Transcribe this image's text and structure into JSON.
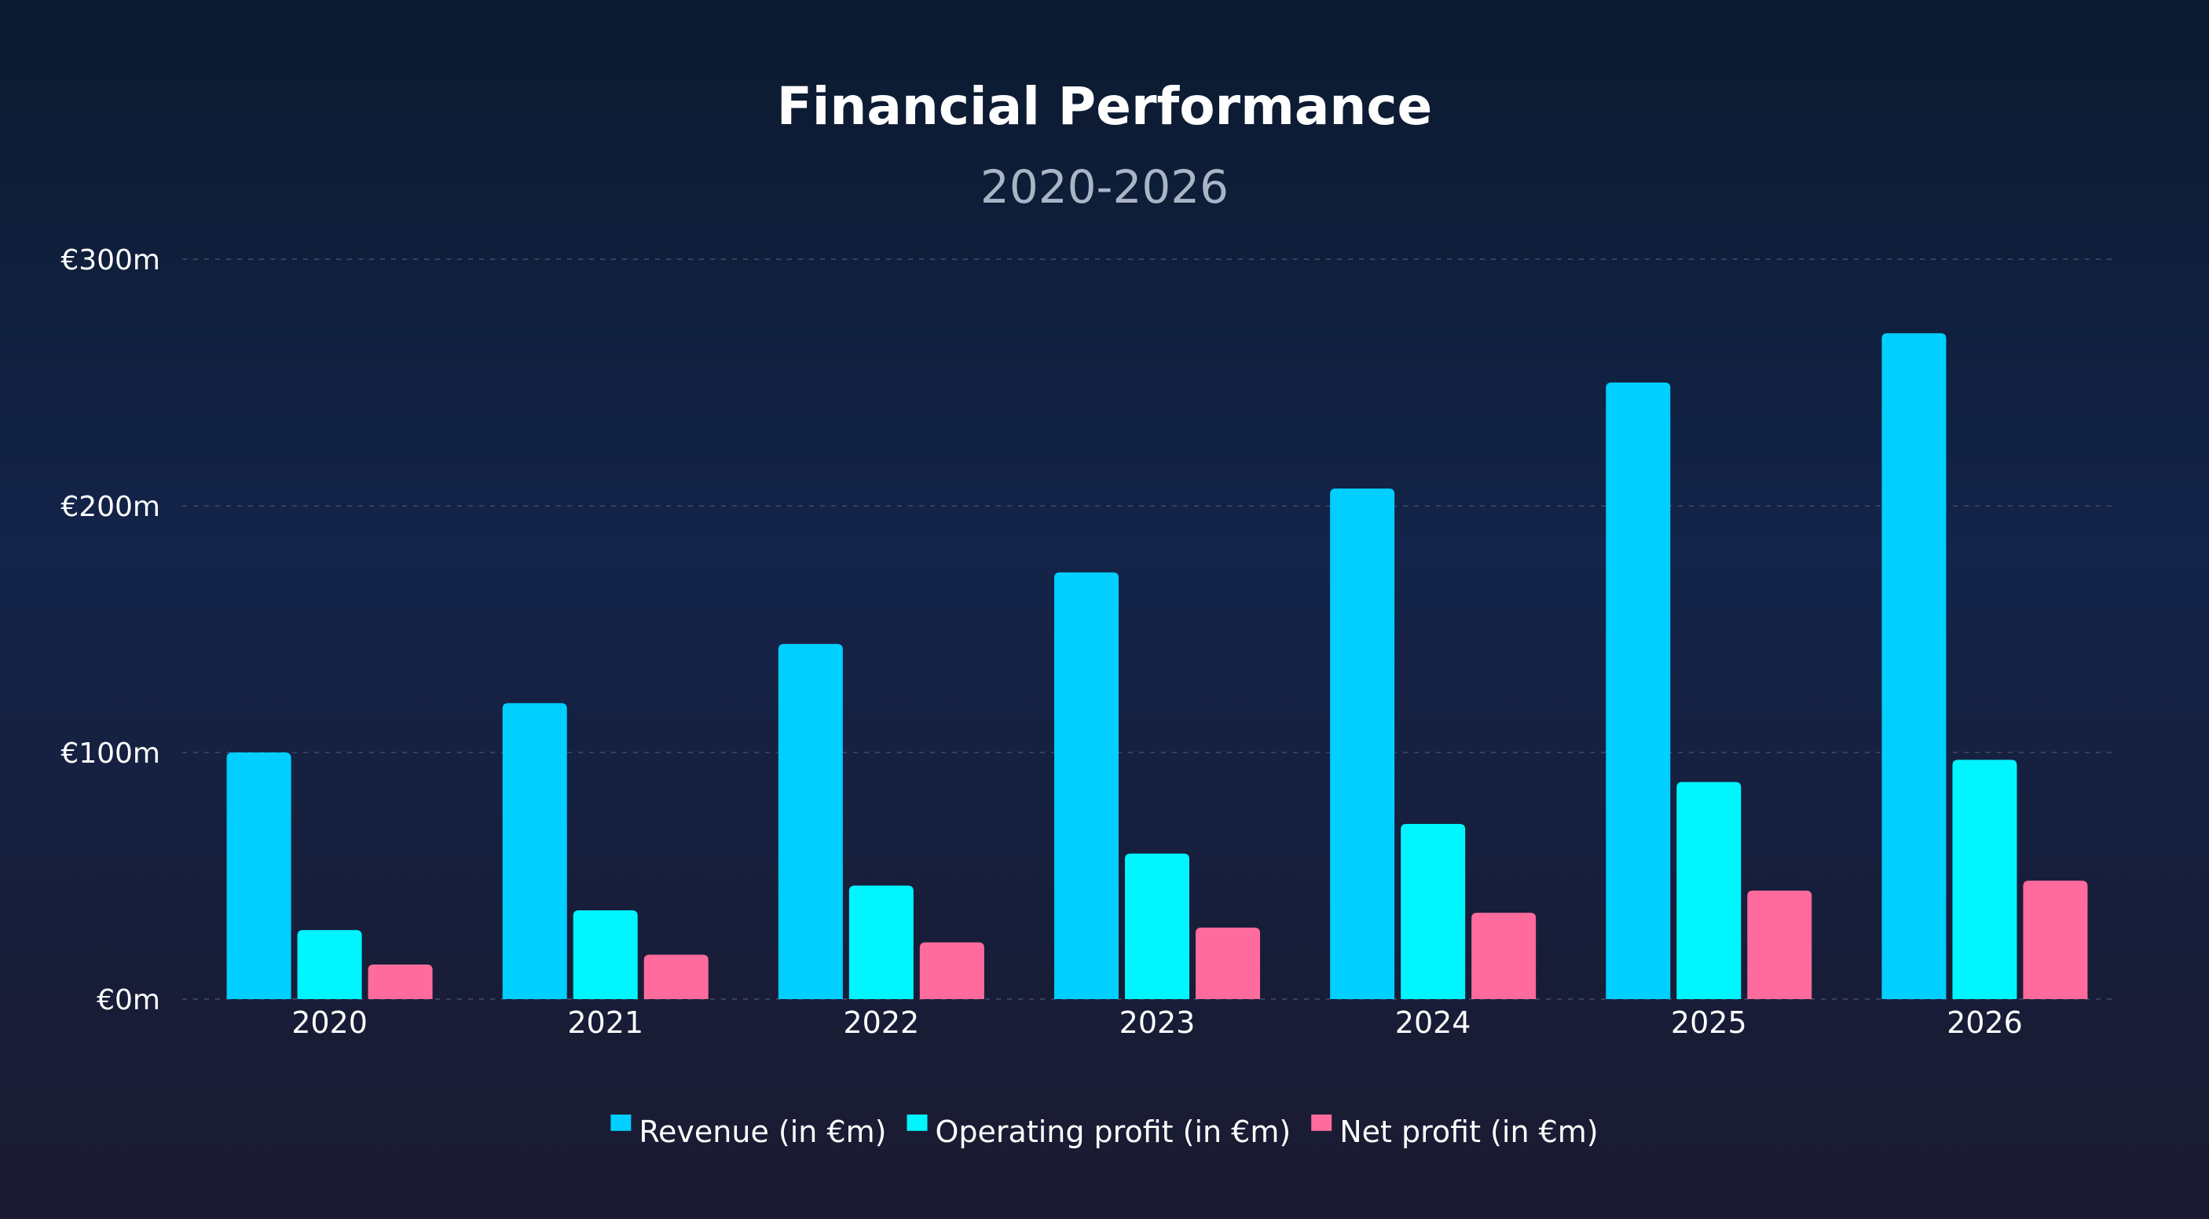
{
  "chart_data": {
    "type": "bar",
    "title": "Financial Performance",
    "subtitle": "2020-2026",
    "xlabel": "",
    "ylabel": "",
    "categories": [
      "2020",
      "2021",
      "2022",
      "2023",
      "2024",
      "2025",
      "2026"
    ],
    "series": [
      {
        "name": "Revenue (in €m)",
        "color": "#00cfff",
        "values": [
          100,
          120,
          144,
          173,
          207,
          250,
          270
        ]
      },
      {
        "name": "Operating profit (in €m)",
        "color": "#00f5ff",
        "values": [
          28,
          36,
          46,
          59,
          71,
          88,
          97
        ]
      },
      {
        "name": "Net profit (in €m)",
        "color": "#ff6b9d",
        "values": [
          14,
          18,
          23,
          29,
          35,
          44,
          48
        ]
      }
    ],
    "ylim": [
      0,
      300
    ],
    "yticks": [
      0,
      100,
      200,
      300
    ],
    "ytick_labels": [
      "€0m",
      "€100m",
      "€200m",
      "€300m"
    ],
    "grid": true,
    "legend_position": "bottom-center"
  }
}
